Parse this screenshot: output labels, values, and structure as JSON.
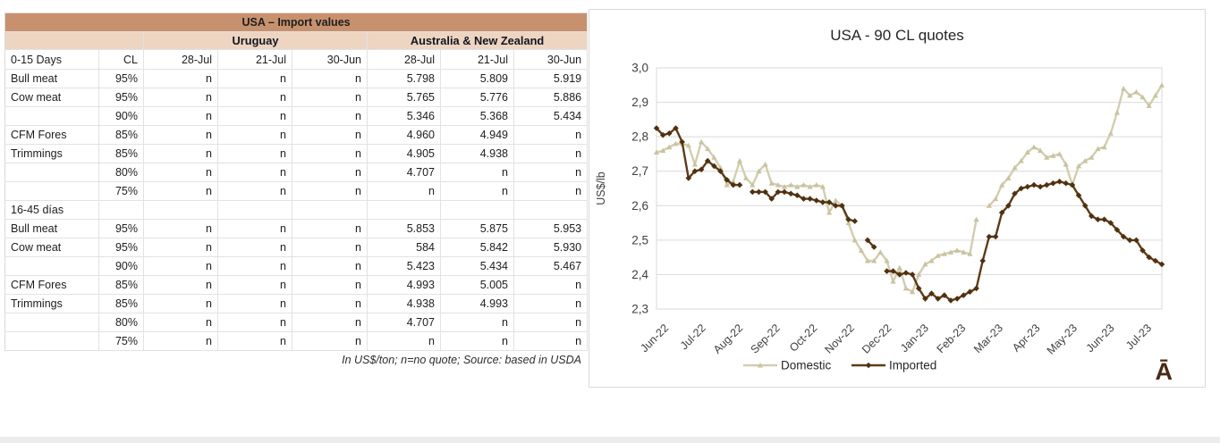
{
  "table": {
    "title": "USA – Import values",
    "groups": [
      "Uruguay",
      "Australia & New Zealand"
    ],
    "header": {
      "label": "0-15 Days",
      "cl": "CL",
      "dates": [
        "28-Jul",
        "21-Jul",
        "30-Jun",
        "28-Jul",
        "21-Jul",
        "30-Jun"
      ]
    },
    "rows": [
      {
        "label": "Bull meat",
        "cl": "95%",
        "values": [
          "n",
          "n",
          "n",
          "5.798",
          "5.809",
          "5.919"
        ]
      },
      {
        "label": "Cow meat",
        "cl": "95%",
        "values": [
          "n",
          "n",
          "n",
          "5.765",
          "5.776",
          "5.886"
        ]
      },
      {
        "label": "",
        "cl": "90%",
        "values": [
          "n",
          "n",
          "n",
          "5.346",
          "5.368",
          "5.434"
        ]
      },
      {
        "label": "CFM Fores",
        "cl": "85%",
        "values": [
          "n",
          "n",
          "n",
          "4.960",
          "4.949",
          "n"
        ]
      },
      {
        "label": "Trimmings",
        "cl": "85%",
        "values": [
          "n",
          "n",
          "n",
          "4.905",
          "4.938",
          "n"
        ]
      },
      {
        "label": "",
        "cl": "80%",
        "values": [
          "n",
          "n",
          "n",
          "4.707",
          "n",
          "n"
        ]
      },
      {
        "label": "",
        "cl": "75%",
        "values": [
          "n",
          "n",
          "n",
          "n",
          "n",
          "n"
        ]
      },
      {
        "label": "16-45 días",
        "cl": "",
        "values": [
          "",
          "",
          "",
          "",
          "",
          ""
        ],
        "section": true
      },
      {
        "label": "Bull meat",
        "cl": "95%",
        "values": [
          "n",
          "n",
          "n",
          "5.853",
          "5.875",
          "5.953"
        ]
      },
      {
        "label": "Cow meat",
        "cl": "95%",
        "values": [
          "n",
          "n",
          "n",
          "584",
          "5.842",
          "5.930"
        ]
      },
      {
        "label": "",
        "cl": "90%",
        "values": [
          "n",
          "n",
          "n",
          "5.423",
          "5.434",
          "5.467"
        ]
      },
      {
        "label": "CFM Fores",
        "cl": "85%",
        "values": [
          "n",
          "n",
          "n",
          "4.993",
          "5.005",
          "n"
        ]
      },
      {
        "label": "Trimmings",
        "cl": "85%",
        "values": [
          "n",
          "n",
          "n",
          "4.938",
          "4.993",
          "n"
        ]
      },
      {
        "label": "",
        "cl": "80%",
        "values": [
          "n",
          "n",
          "n",
          "4.707",
          "n",
          "n"
        ]
      },
      {
        "label": "",
        "cl": "75%",
        "values": [
          "n",
          "n",
          "n",
          "n",
          "n",
          "n"
        ]
      }
    ],
    "footnote": "In US$/ton; n=no quote; Source: based in USDA",
    "colors": {
      "title_bg": "#c8916e",
      "group_bg": "#edd5c2",
      "title_text": "#ffffff"
    }
  },
  "chart_data": {
    "type": "line",
    "title": "USA - 90 CL quotes",
    "ylabel": "US$/lb",
    "ylim": [
      2.3,
      3.0
    ],
    "y_ticks": [
      "3,0",
      "2,9",
      "2,8",
      "2,7",
      "2,6",
      "2,5",
      "2,4",
      "2,3"
    ],
    "x_ticks": [
      "Jun-22",
      "Jul-22",
      "Aug-22",
      "Sep-22",
      "Oct-22",
      "Nov-22",
      "Dec-22",
      "Jan-23",
      "Feb-23",
      "Mar-23",
      "Apr-23",
      "May-23",
      "Jun-23",
      "Jul-23"
    ],
    "grid": true,
    "legend_position": "bottom",
    "colors": {
      "domestic": "#d2cdaf",
      "imported": "#5e3a17",
      "axis": "#d9d9d9",
      "text": "#3f3f3f"
    },
    "series": [
      {
        "name": "Domestic",
        "marker": "triangle",
        "values": [
          2.755,
          2.76,
          2.77,
          2.78,
          2.78,
          2.775,
          2.72,
          2.785,
          2.765,
          2.74,
          2.71,
          2.66,
          2.67,
          2.73,
          2.68,
          2.66,
          2.7,
          2.72,
          2.665,
          2.66,
          2.655,
          2.66,
          2.655,
          2.66,
          2.655,
          2.66,
          2.655,
          2.58,
          2.615,
          2.6,
          2.55,
          2.5,
          2.47,
          2.44,
          2.44,
          2.465,
          2.44,
          2.38,
          2.42,
          2.36,
          2.35,
          2.4,
          2.43,
          2.44,
          2.455,
          2.46,
          2.465,
          2.47,
          2.465,
          2.46,
          2.56,
          null,
          2.6,
          2.62,
          2.66,
          2.68,
          2.71,
          2.73,
          2.755,
          2.77,
          2.76,
          2.74,
          2.745,
          2.75,
          2.72,
          2.66,
          2.715,
          2.73,
          2.74,
          2.765,
          2.77,
          2.81,
          2.87,
          2.94,
          2.92,
          2.93,
          2.915,
          2.89,
          2.92,
          2.95
        ]
      },
      {
        "name": "Imported",
        "marker": "diamond",
        "values": [
          2.825,
          2.805,
          2.81,
          2.825,
          2.785,
          2.68,
          2.7,
          2.705,
          2.73,
          2.715,
          2.7,
          2.675,
          2.66,
          2.66,
          null,
          2.64,
          2.64,
          2.64,
          2.62,
          2.64,
          2.64,
          2.635,
          2.63,
          2.62,
          2.62,
          2.615,
          2.61,
          2.61,
          2.6,
          2.6,
          2.56,
          2.555,
          null,
          2.5,
          2.48,
          null,
          2.41,
          2.41,
          2.4,
          2.405,
          2.4,
          2.36,
          2.33,
          2.345,
          2.33,
          2.34,
          2.325,
          2.33,
          2.34,
          2.35,
          2.36,
          2.44,
          2.51,
          2.51,
          2.58,
          2.6,
          2.635,
          2.65,
          2.655,
          2.66,
          2.655,
          2.66,
          2.665,
          2.67,
          2.665,
          2.66,
          2.63,
          2.6,
          2.57,
          2.56,
          2.56,
          2.55,
          2.53,
          2.51,
          2.5,
          2.5,
          2.47,
          2.45,
          2.44,
          2.43
        ]
      }
    ]
  },
  "logo_text": "Ā"
}
